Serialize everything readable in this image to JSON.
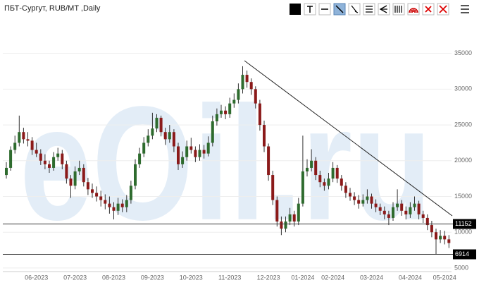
{
  "chart_data": {
    "type": "candlestick",
    "title": "ПБТ-Сургут, RUB/MT ,Daily",
    "watermark": "eOil.ru",
    "up_color": "#2e6b2e",
    "down_color": "#8b1a1a",
    "grid": true,
    "ylim": [
      4500,
      39500
    ],
    "yticks": [
      5000,
      10000,
      15000,
      20000,
      25000,
      30000,
      35000
    ],
    "hlines": [
      11152,
      6914
    ],
    "categories": [
      null,
      null,
      null,
      null,
      null,
      null,
      null,
      "06-2023",
      null,
      null,
      null,
      null,
      null,
      null,
      null,
      null,
      "07-2023",
      null,
      null,
      null,
      null,
      null,
      null,
      null,
      null,
      "08-2023",
      null,
      null,
      null,
      null,
      null,
      null,
      null,
      null,
      "09-2023",
      null,
      null,
      null,
      null,
      null,
      null,
      null,
      null,
      "10-2023",
      null,
      null,
      null,
      null,
      null,
      null,
      null,
      null,
      "11-2023",
      null,
      null,
      null,
      null,
      null,
      null,
      null,
      null,
      "12-2023",
      null,
      null,
      null,
      null,
      null,
      null,
      null,
      "01-2024",
      null,
      null,
      null,
      null,
      null,
      null,
      "02-2024",
      null,
      null,
      null,
      null,
      null,
      null,
      null,
      null,
      "03-2024",
      null,
      null,
      null,
      null,
      null,
      null,
      null,
      null,
      "04-2024",
      null,
      null,
      null,
      null,
      null,
      null,
      null,
      "05-2024",
      null
    ],
    "candles": [
      [
        18000,
        19800,
        17500,
        19000
      ],
      [
        19000,
        22000,
        18600,
        21500
      ],
      [
        21500,
        23500,
        21000,
        22500
      ],
      [
        22500,
        26300,
        22000,
        24000
      ],
      [
        24000,
        24600,
        22400,
        23000
      ],
      [
        23000,
        24000,
        22000,
        22800
      ],
      [
        22800,
        23300,
        20800,
        21500
      ],
      [
        21500,
        22500,
        20500,
        21000
      ],
      [
        21000,
        21600,
        19400,
        20000
      ],
      [
        20000,
        20900,
        18800,
        19500
      ],
      [
        19500,
        20000,
        18300,
        19000
      ],
      [
        19000,
        21200,
        18600,
        20500
      ],
      [
        20500,
        21800,
        20000,
        21000
      ],
      [
        21000,
        21500,
        18800,
        19500
      ],
      [
        19500,
        20000,
        16800,
        17500
      ],
      [
        17500,
        18000,
        14800,
        16500
      ],
      [
        16500,
        19200,
        16000,
        18500
      ],
      [
        18500,
        20000,
        18000,
        19000
      ],
      [
        19000,
        19500,
        16400,
        17000
      ],
      [
        17000,
        17600,
        15200,
        16000
      ],
      [
        16000,
        16800,
        14800,
        15500
      ],
      [
        15500,
        16400,
        14300,
        15000
      ],
      [
        15000,
        15800,
        13600,
        14500
      ],
      [
        14500,
        15300,
        13200,
        14000
      ],
      [
        14000,
        15000,
        12600,
        13500
      ],
      [
        13500,
        14200,
        11800,
        13000
      ],
      [
        13000,
        14800,
        12400,
        14000
      ],
      [
        14000,
        14600,
        12800,
        13500
      ],
      [
        13500,
        15200,
        12800,
        14500
      ],
      [
        14500,
        17200,
        14000,
        16500
      ],
      [
        16500,
        20200,
        16000,
        19500
      ],
      [
        19500,
        21800,
        19000,
        21000
      ],
      [
        21000,
        23300,
        20500,
        22500
      ],
      [
        22500,
        24400,
        22000,
        23500
      ],
      [
        23500,
        26700,
        23000,
        24500
      ],
      [
        24500,
        26500,
        24000,
        26000
      ],
      [
        26000,
        26300,
        23400,
        24000
      ],
      [
        24000,
        24600,
        22200,
        23000
      ],
      [
        23000,
        25000,
        22500,
        24000
      ],
      [
        24000,
        24400,
        21200,
        22000
      ],
      [
        22000,
        22500,
        18700,
        19500
      ],
      [
        19500,
        21300,
        19000,
        20500
      ],
      [
        20500,
        22800,
        20000,
        22000
      ],
      [
        22000,
        23200,
        21000,
        21500
      ],
      [
        21500,
        22000,
        19800,
        20500
      ],
      [
        20500,
        22300,
        20000,
        21500
      ],
      [
        21500,
        22200,
        20300,
        21000
      ],
      [
        21000,
        23400,
        20600,
        22500
      ],
      [
        22500,
        26300,
        22000,
        25500
      ],
      [
        25500,
        27300,
        24900,
        26500
      ],
      [
        26500,
        27800,
        26000,
        27000
      ],
      [
        27000,
        27600,
        25800,
        26500
      ],
      [
        26500,
        28800,
        26000,
        28000
      ],
      [
        28000,
        29400,
        27400,
        28500
      ],
      [
        28500,
        30800,
        28000,
        30000
      ],
      [
        30000,
        33200,
        29400,
        32000
      ],
      [
        32000,
        32600,
        30200,
        31000
      ],
      [
        31000,
        31500,
        29200,
        30000
      ],
      [
        30000,
        30400,
        27300,
        28000
      ],
      [
        28000,
        28500,
        24200,
        25000
      ],
      [
        25000,
        25600,
        21200,
        22000
      ],
      [
        22000,
        22400,
        17200,
        18000
      ],
      [
        18000,
        18600,
        13800,
        14500
      ],
      [
        14500,
        15000,
        10800,
        11500
      ],
      [
        11500,
        12200,
        9600,
        10500
      ],
      [
        10500,
        12200,
        10000,
        11500
      ],
      [
        11500,
        13400,
        11000,
        12500
      ],
      [
        12500,
        13000,
        10800,
        11500
      ],
      [
        11500,
        14800,
        11000,
        14000
      ],
      [
        14000,
        23500,
        13600,
        18500
      ],
      [
        18500,
        20200,
        17800,
        19000
      ],
      [
        19000,
        21600,
        18500,
        20000
      ],
      [
        20000,
        20500,
        17300,
        18000
      ],
      [
        18000,
        18600,
        16300,
        17000
      ],
      [
        17000,
        17500,
        15800,
        16500
      ],
      [
        16500,
        18300,
        16000,
        17500
      ],
      [
        17500,
        19800,
        17000,
        19000
      ],
      [
        19000,
        19400,
        16900,
        17500
      ],
      [
        17500,
        18000,
        15800,
        16500
      ],
      [
        16500,
        17000,
        14800,
        15500
      ],
      [
        15500,
        16200,
        14400,
        15000
      ],
      [
        15000,
        15600,
        13800,
        14500
      ],
      [
        14500,
        15200,
        13300,
        14000
      ],
      [
        14000,
        15300,
        13600,
        14500
      ],
      [
        14500,
        16000,
        14000,
        15000
      ],
      [
        15000,
        15400,
        13300,
        14000
      ],
      [
        14000,
        14600,
        12800,
        13500
      ],
      [
        13500,
        14000,
        12400,
        13000
      ],
      [
        13000,
        13600,
        11800,
        12500
      ],
      [
        12500,
        13000,
        11000,
        12000
      ],
      [
        12000,
        14200,
        11600,
        13500
      ],
      [
        13500,
        16000,
        13000,
        14000
      ],
      [
        14000,
        14500,
        12300,
        13000
      ],
      [
        13000,
        13600,
        11800,
        12500
      ],
      [
        12500,
        14200,
        12000,
        13500
      ],
      [
        13500,
        15000,
        13000,
        14000
      ],
      [
        14000,
        14400,
        11800,
        12500
      ],
      [
        12500,
        13000,
        11300,
        12000
      ],
      [
        12000,
        12500,
        10300,
        11000
      ],
      [
        11000,
        11600,
        9300,
        10000
      ],
      [
        10000,
        10500,
        6900,
        9000
      ],
      [
        9000,
        10300,
        8500,
        9500
      ],
      [
        9500,
        10200,
        8300,
        9000
      ],
      [
        9000,
        9600,
        7800,
        8500
      ]
    ]
  }
}
